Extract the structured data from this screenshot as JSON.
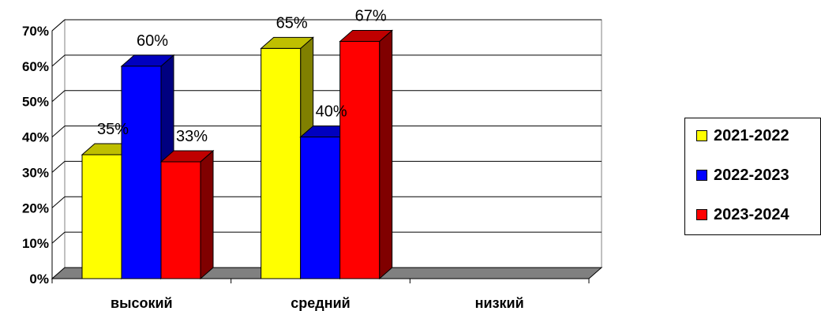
{
  "chart_data": {
    "type": "bar",
    "categories": [
      "высокий",
      "средний",
      "низкий"
    ],
    "series": [
      {
        "name": "2021-2022",
        "color": "#ffff00",
        "values": [
          35,
          65,
          null
        ]
      },
      {
        "name": "2022-2023",
        "color": "#0000ff",
        "values": [
          60,
          40,
          null
        ]
      },
      {
        "name": "2023-2024",
        "color": "#ff0000",
        "values": [
          33,
          67,
          null
        ]
      }
    ],
    "data_labels": [
      [
        "35%",
        "65%",
        ""
      ],
      [
        "60%",
        "40%",
        ""
      ],
      [
        "33%",
        "67%",
        ""
      ]
    ],
    "y_ticks": [
      "0%",
      "10%",
      "20%",
      "30%",
      "40%",
      "50%",
      "60%",
      "70%"
    ],
    "ylim": [
      0,
      70
    ],
    "grid": true,
    "legend_position": "right",
    "style": "3d-clustered-column"
  }
}
